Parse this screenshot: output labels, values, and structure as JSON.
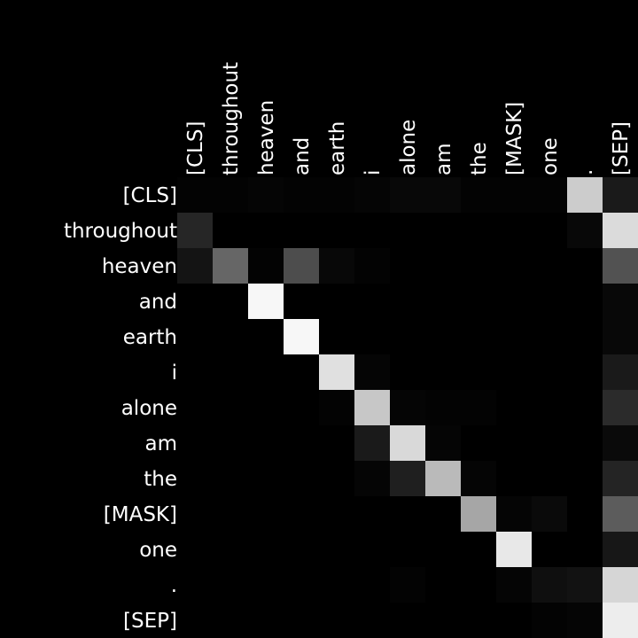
{
  "chart_data": {
    "type": "heatmap",
    "title": "",
    "xlabel": "",
    "ylabel": "",
    "x_tick_labels": [
      "[CLS]",
      "throughout",
      "heaven",
      "and",
      "earth",
      "i",
      "alone",
      "am",
      "the",
      "[MASK]",
      "one",
      ".",
      "[SEP]"
    ],
    "y_tick_labels": [
      "[CLS]",
      "throughout",
      "heaven",
      "and",
      "earth",
      "i",
      "alone",
      "am",
      "the",
      "[MASK]",
      "one",
      ".",
      "[SEP]"
    ],
    "value_range": [
      0,
      1
    ],
    "colormap": "grayscale",
    "colormap_low": "#000000",
    "colormap_high": "#ffffff",
    "x_tick_position": "top",
    "y_tick_position": "left",
    "grid": false,
    "legend": "none",
    "values": [
      [
        0.01,
        0.01,
        0.02,
        0.01,
        0.01,
        0.02,
        0.03,
        0.03,
        0.01,
        0.01,
        0.01,
        0.8,
        0.1
      ],
      [
        0.15,
        0.0,
        0.0,
        0.0,
        0.0,
        0.0,
        0.0,
        0.0,
        0.0,
        0.0,
        0.0,
        0.03,
        0.86
      ],
      [
        0.08,
        0.4,
        0.01,
        0.3,
        0.03,
        0.01,
        0.0,
        0.0,
        0.0,
        0.0,
        0.0,
        0.0,
        0.32
      ],
      [
        0.0,
        0.0,
        0.97,
        0.0,
        0.0,
        0.0,
        0.0,
        0.0,
        0.0,
        0.0,
        0.0,
        0.0,
        0.03
      ],
      [
        0.0,
        0.0,
        0.0,
        0.97,
        0.0,
        0.0,
        0.0,
        0.0,
        0.0,
        0.0,
        0.0,
        0.0,
        0.03
      ],
      [
        0.0,
        0.0,
        0.0,
        0.0,
        0.88,
        0.02,
        0.0,
        0.0,
        0.0,
        0.0,
        0.0,
        0.0,
        0.1
      ],
      [
        0.0,
        0.0,
        0.0,
        0.0,
        0.01,
        0.78,
        0.02,
        0.01,
        0.01,
        0.0,
        0.0,
        0.0,
        0.17
      ],
      [
        0.0,
        0.0,
        0.0,
        0.0,
        0.0,
        0.1,
        0.85,
        0.02,
        0.0,
        0.0,
        0.0,
        0.0,
        0.04
      ],
      [
        0.0,
        0.0,
        0.0,
        0.0,
        0.0,
        0.02,
        0.12,
        0.73,
        0.02,
        0.0,
        0.0,
        0.0,
        0.14
      ],
      [
        0.0,
        0.0,
        0.0,
        0.0,
        0.0,
        0.0,
        0.0,
        0.0,
        0.65,
        0.02,
        0.04,
        0.0,
        0.36
      ],
      [
        0.0,
        0.0,
        0.0,
        0.0,
        0.0,
        0.0,
        0.0,
        0.0,
        0.0,
        0.91,
        0.0,
        0.0,
        0.09
      ],
      [
        0.0,
        0.0,
        0.0,
        0.0,
        0.0,
        0.0,
        0.01,
        0.0,
        0.0,
        0.02,
        0.06,
        0.07,
        0.84
      ],
      [
        0.0,
        0.0,
        0.0,
        0.0,
        0.0,
        0.0,
        0.0,
        0.0,
        0.0,
        0.0,
        0.01,
        0.02,
        0.93
      ]
    ]
  }
}
